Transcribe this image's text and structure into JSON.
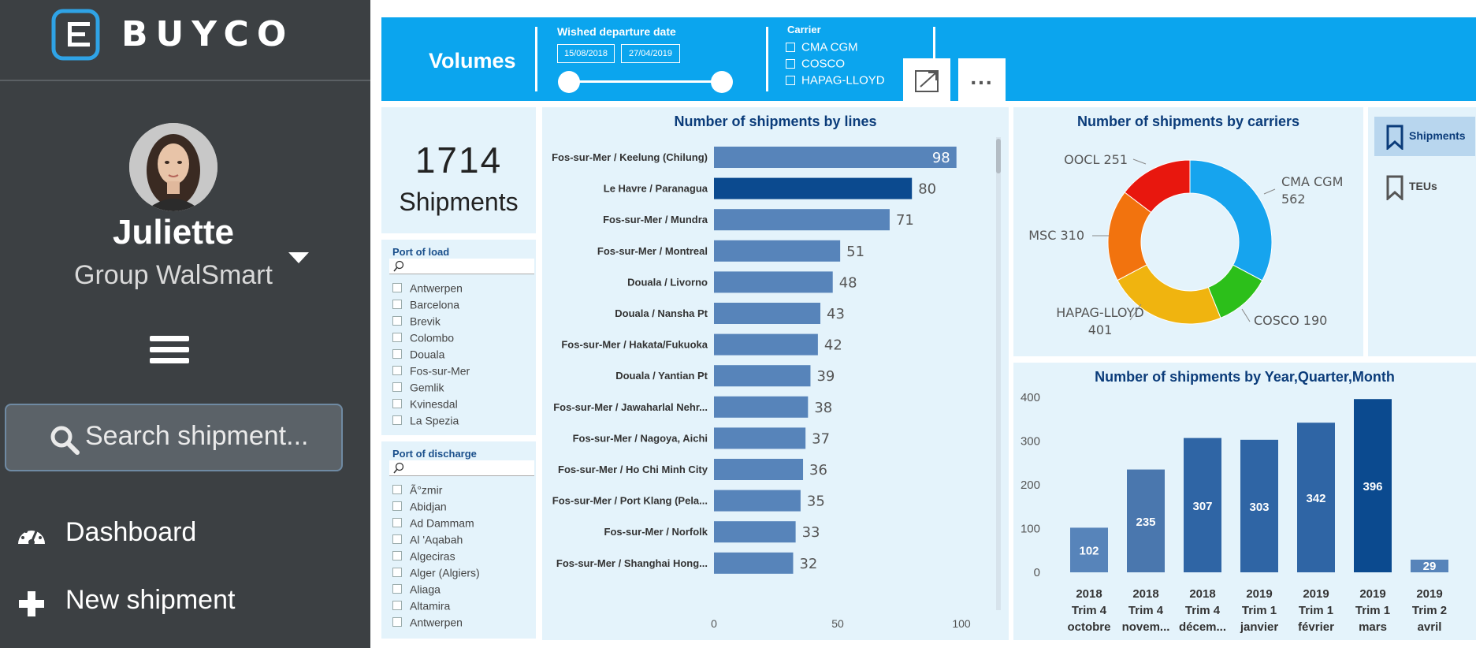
{
  "brand": {
    "logo_text": "BUYCO",
    "accent_color": "#2fa3e6"
  },
  "user": {
    "name": "Juliette",
    "group": "Group WalSmart"
  },
  "sidebar": {
    "search_placeholder": "Search shipment...",
    "nav": [
      {
        "label": "Dashboard",
        "icon": "dashboard-gauge-icon"
      },
      {
        "label": "New shipment",
        "icon": "plus-icon"
      }
    ]
  },
  "header": {
    "title": "Volumes",
    "date_filter": {
      "label": "Wished departure date",
      "start": "15/08/2018",
      "end": "27/04/2019"
    },
    "carrier_filter": {
      "label": "Carrier",
      "options": [
        "CMA CGM",
        "COSCO",
        "HAPAG-LLOYD"
      ]
    },
    "band_color": "#0ba5ee"
  },
  "kpi": {
    "value": "1714",
    "label": "Shipments"
  },
  "port_of_load": {
    "title": "Port of load",
    "items": [
      "Antwerpen",
      "Barcelona",
      "Brevik",
      "Colombo",
      "Douala",
      "Fos-sur-Mer",
      "Gemlik",
      "Kvinesdal",
      "La Spezia"
    ]
  },
  "port_of_discharge": {
    "title": "Port of discharge",
    "items": [
      "Ã°zmir",
      "Abidjan",
      "Ad Dammam",
      "Al 'Aqabah",
      "Algeciras",
      "Alger (Algiers)",
      "Aliaga",
      "Altamira",
      "Antwerpen"
    ]
  },
  "measure_toggle": {
    "options": [
      "Shipments",
      "TEUs"
    ],
    "selected": "Shipments"
  },
  "chart_data": [
    {
      "type": "bar",
      "orientation": "horizontal",
      "title": "Number of shipments by lines",
      "categories": [
        "Fos-sur-Mer / Keelung (Chilung)",
        "Le Havre / Paranagua",
        "Fos-sur-Mer / Mundra",
        "Fos-sur-Mer / Montreal",
        "Douala / Livorno",
        "Douala / Nansha Pt",
        "Fos-sur-Mer / Hakata/Fukuoka",
        "Douala / Yantian Pt",
        "Fos-sur-Mer / Jawaharlal Nehr...",
        "Fos-sur-Mer / Nagoya, Aichi",
        "Fos-sur-Mer / Ho Chi Minh City",
        "Fos-sur-Mer / Port Klang (Pela...",
        "Fos-sur-Mer / Norfolk",
        "Fos-sur-Mer / Shanghai Hong..."
      ],
      "values": [
        98,
        80,
        71,
        51,
        48,
        43,
        42,
        39,
        38,
        37,
        36,
        35,
        33,
        32
      ],
      "highlighted": "Le Havre / Paranagua",
      "xlim": [
        0,
        100
      ],
      "xticks": [
        0,
        50,
        100
      ],
      "colors": {
        "bar": "#5784ba",
        "highlight": "#0b4a8f"
      }
    },
    {
      "type": "pie",
      "donut": true,
      "title": "Number of shipments by carriers",
      "slices": [
        {
          "label": "CMA CGM",
          "value": 562,
          "color": "#16a4ee"
        },
        {
          "label": "COSCO",
          "value": 190,
          "color": "#2cbf1a"
        },
        {
          "label": "HAPAG-LLOYD",
          "value": 401,
          "color": "#f0b40f"
        },
        {
          "label": "MSC",
          "value": 310,
          "color": "#f2730e"
        },
        {
          "label": "OOCL",
          "value": 251,
          "color": "#e8170e"
        }
      ]
    },
    {
      "type": "bar",
      "title": "Number of shipments by Year,Quarter,Month",
      "categories": [
        [
          "2018",
          "Trim 4",
          "octobre"
        ],
        [
          "2018",
          "Trim 4",
          "novem..."
        ],
        [
          "2018",
          "Trim 4",
          "décem..."
        ],
        [
          "2019",
          "Trim 1",
          "janvier"
        ],
        [
          "2019",
          "Trim 1",
          "février"
        ],
        [
          "2019",
          "Trim 1",
          "mars"
        ],
        [
          "2019",
          "Trim 2",
          "avril"
        ]
      ],
      "values": [
        102,
        235,
        307,
        303,
        342,
        396,
        29
      ],
      "colors": [
        "#5784ba",
        "#4a77ae",
        "#2f65a5",
        "#2f65a5",
        "#2f65a5",
        "#0b4a8f",
        "#5784ba"
      ],
      "ylim": [
        0,
        400
      ],
      "yticks": [
        0,
        100,
        200,
        300,
        400
      ]
    }
  ]
}
